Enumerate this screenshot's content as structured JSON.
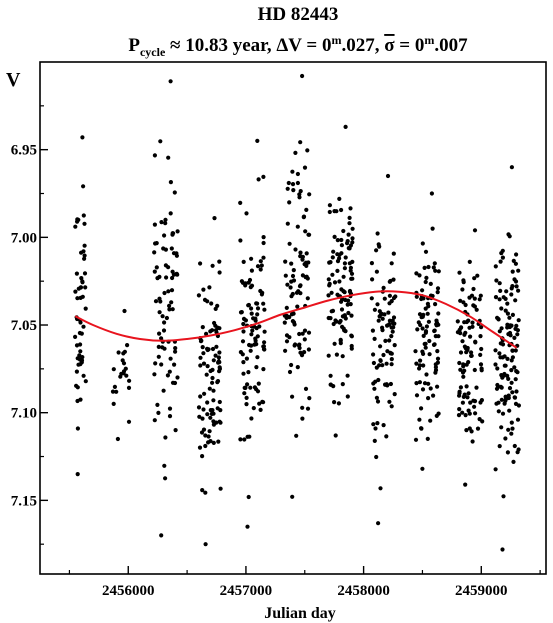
{
  "chart_data": {
    "type": "scatter",
    "title": "HD 82443",
    "subtitle": {
      "p_label": "P",
      "p_sub": "cycle",
      "p_rest": " ≈ 10.83 year, ΔV = 0",
      "dv_sup": "m",
      "dv_rest": ".027, ",
      "sigma_symbol": "σ",
      "sigma_rest": " = 0",
      "sigma_sup": "m",
      "sigma_val": ".007"
    },
    "xlabel": "Julian day",
    "ylabel": "V",
    "xlim": [
      2455250,
      2459550
    ],
    "ylim": [
      7.192,
      6.9
    ],
    "y_inverted": true,
    "grid": false,
    "xticks": [
      2456000,
      2457000,
      2458000,
      2459000
    ],
    "xtick_labels": [
      "2456000",
      "2457000",
      "2458000",
      "2459000"
    ],
    "yticks": [
      6.95,
      7.0,
      7.05,
      7.1,
      7.15
    ],
    "ytick_labels": [
      "6.95",
      "7.00",
      "7.05",
      "7.10",
      "7.15"
    ],
    "fit_curve": {
      "color": "#e8141e",
      "x": [
        2455550,
        2455700,
        2455900,
        2456100,
        2456300,
        2456500,
        2456700,
        2456900,
        2457100,
        2457300,
        2457500,
        2457700,
        2457900,
        2458100,
        2458300,
        2458500,
        2458700,
        2458900,
        2459100,
        2459300
      ],
      "y": [
        7.045,
        7.05,
        7.055,
        7.058,
        7.059,
        7.058,
        7.056,
        7.053,
        7.049,
        7.044,
        7.04,
        7.036,
        7.033,
        7.031,
        7.031,
        7.033,
        7.038,
        7.045,
        7.054,
        7.063
      ]
    },
    "observing_seasons": [
      {
        "x_range": [
          2455540,
          2455640
        ],
        "y_range": [
          6.943,
          7.135
        ],
        "count": 55
      },
      {
        "x_range": [
          2455870,
          2456010
        ],
        "y_range": [
          7.042,
          7.115
        ],
        "count": 22
      },
      {
        "x_range": [
          2456220,
          2456420
        ],
        "y_range": [
          6.911,
          7.17
        ],
        "count": 85
      },
      {
        "x_range": [
          2456600,
          2456790
        ],
        "y_range": [
          6.989,
          7.175
        ],
        "count": 95
      },
      {
        "x_range": [
          2456950,
          2457160
        ],
        "y_range": [
          6.945,
          7.165
        ],
        "count": 100
      },
      {
        "x_range": [
          2457330,
          2457540
        ],
        "y_range": [
          6.908,
          7.148
        ],
        "count": 100
      },
      {
        "x_range": [
          2457700,
          2457910
        ],
        "y_range": [
          6.937,
          7.113
        ],
        "count": 110
      },
      {
        "x_range": [
          2458060,
          2458270
        ],
        "y_range": [
          6.965,
          7.163
        ],
        "count": 90
      },
      {
        "x_range": [
          2458440,
          2458640
        ],
        "y_range": [
          6.975,
          7.132
        ],
        "count": 100
      },
      {
        "x_range": [
          2458800,
          2459010
        ],
        "y_range": [
          6.996,
          7.141
        ],
        "count": 100
      },
      {
        "x_range": [
          2459120,
          2459320
        ],
        "y_range": [
          6.96,
          7.178
        ],
        "count": 130
      }
    ]
  }
}
